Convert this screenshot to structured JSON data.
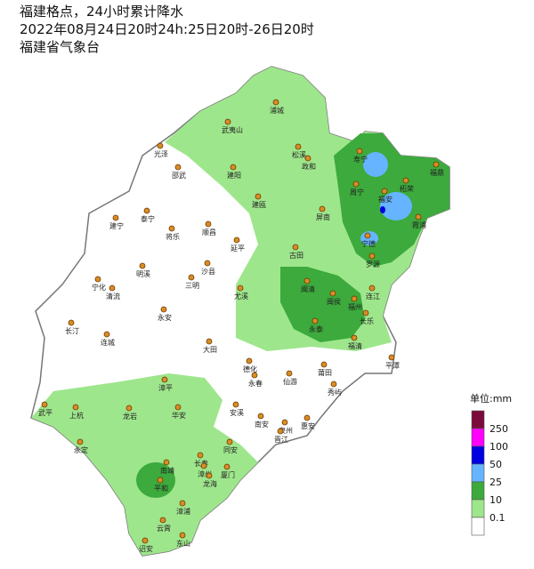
{
  "header": {
    "title": "福建格点，24小时累计降水",
    "period": "2022年08月24日20时24h:25日20时-26日20时",
    "source": "福建省气象台"
  },
  "legend": {
    "title": "单位:mm",
    "colors": [
      "#7a0a3c",
      "#ff00ff",
      "#0000e0",
      "#66b4ff",
      "#3caa3c",
      "#9ee68c",
      "#ffffff"
    ],
    "labels": [
      "250",
      "100",
      "50",
      "25",
      "10",
      "0.1"
    ]
  },
  "counties": [
    "浦城",
    "武夷山",
    "光泽",
    "松溪",
    "政和",
    "邵武",
    "建阳",
    "寿宁",
    "柘荣",
    "福鼎",
    "周宁",
    "福安",
    "霞浦",
    "建瓯",
    "屏南",
    "宁德",
    "泰宁",
    "建宁",
    "将乐",
    "顺昌",
    "古田",
    "罗源",
    "延平",
    "沙县",
    "明溪",
    "宁化",
    "清流",
    "三明",
    "尤溪",
    "闽清",
    "闽侯",
    "连江",
    "福州",
    "长乐",
    "永安",
    "永泰",
    "长汀",
    "连城",
    "大田",
    "福清",
    "平潭",
    "德化",
    "永春",
    "仙游",
    "莆田",
    "秀屿",
    "漳平",
    "武平",
    "上杭",
    "龙岩",
    "华安",
    "安溪",
    "南安",
    "泉州",
    "惠安",
    "晋江",
    "永定",
    "同安",
    "厦门",
    "南靖",
    "长泰",
    "漳州",
    "龙海",
    "平和",
    "漳浦",
    "云霄",
    "东山",
    "诏安"
  ]
}
